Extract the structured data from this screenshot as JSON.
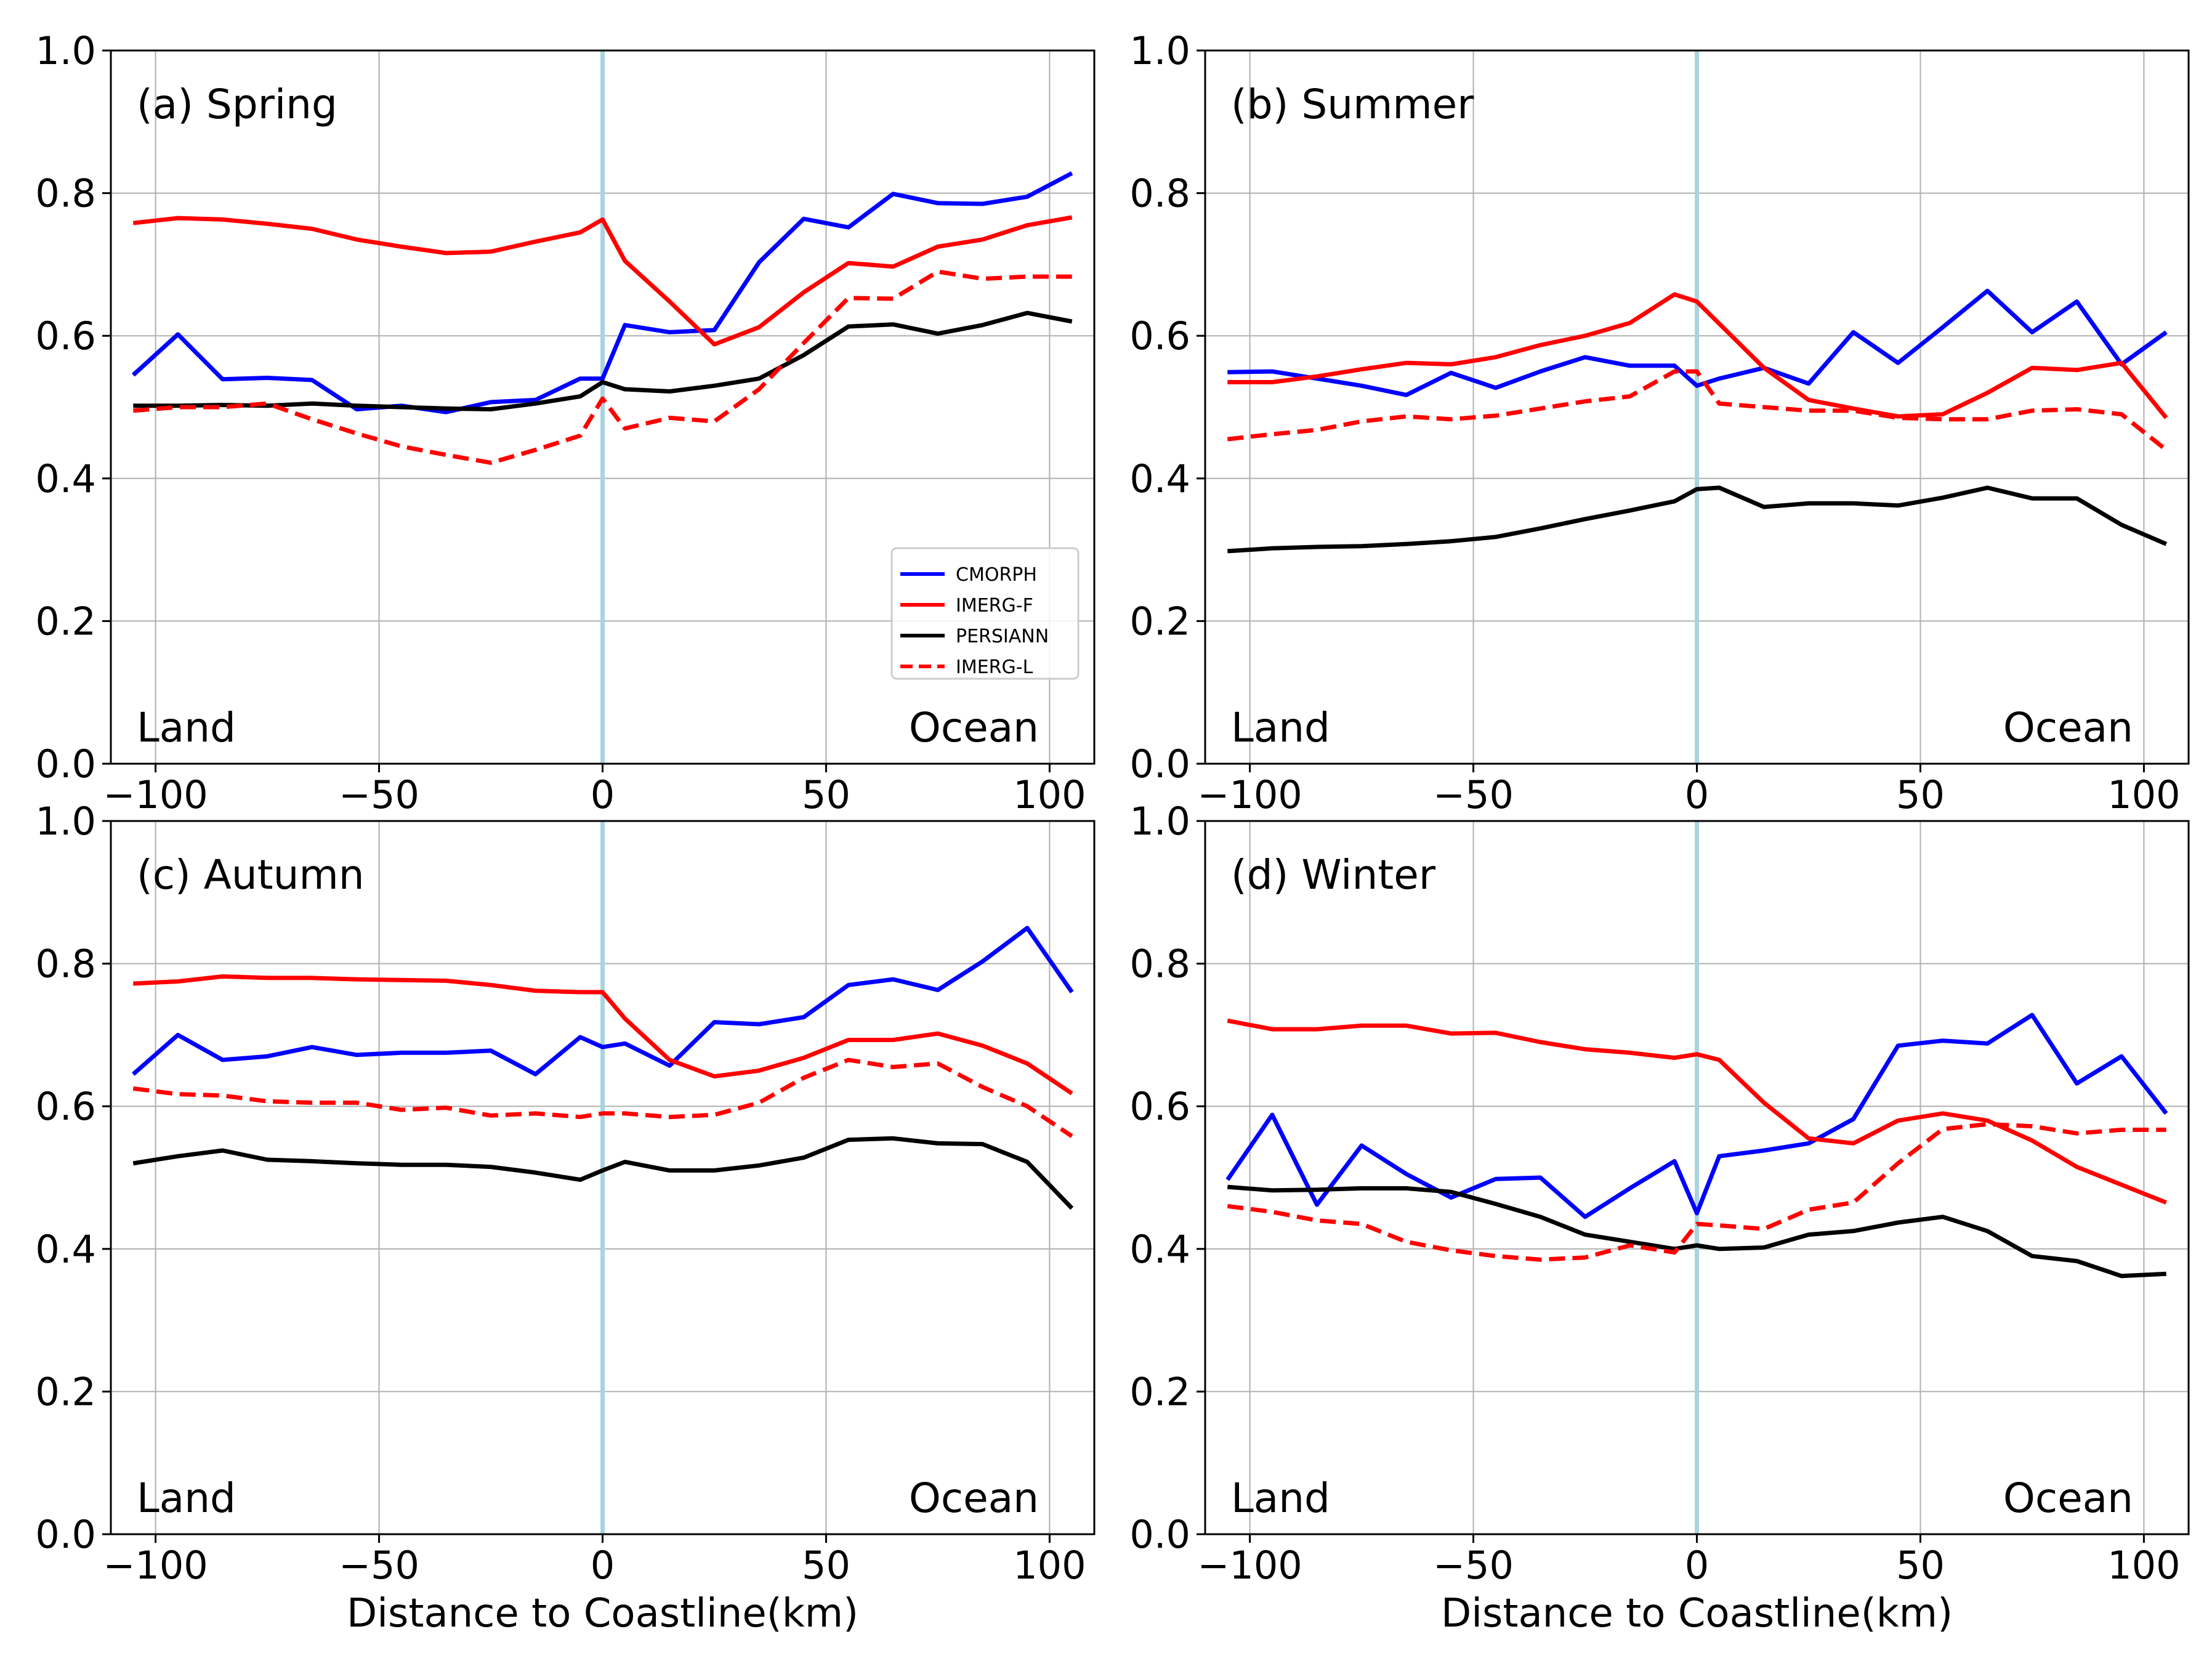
{
  "chart_data": [
    {
      "type": "line",
      "panel": "a",
      "title": "(a) Spring",
      "xlabel": "",
      "ylabel": "",
      "xlim": [
        -110,
        110
      ],
      "ylim": [
        0.0,
        1.0
      ],
      "xticks": [
        -100,
        -50,
        0,
        50,
        100
      ],
      "xtick_labels": [
        "−100",
        "−50",
        "0",
        "50",
        "100"
      ],
      "yticks": [
        0.0,
        0.2,
        0.4,
        0.6,
        0.8,
        1.0
      ],
      "ytick_labels": [
        "0.0",
        "0.2",
        "0.4",
        "0.6",
        "0.8",
        "1.0"
      ],
      "grid": true,
      "land_label": "Land",
      "ocean_label": "Ocean",
      "coastline_x": 0,
      "x": [
        -105,
        -95,
        -85,
        -75,
        -65,
        -55,
        -45,
        -35,
        -25,
        -15,
        -5,
        0,
        5,
        15,
        25,
        35,
        45,
        55,
        65,
        75,
        85,
        95,
        105
      ],
      "series": [
        {
          "name": "CMORPH",
          "color": "#0000ff",
          "dash": false,
          "values": [
            0.545,
            0.602,
            0.539,
            0.541,
            0.538,
            0.497,
            0.502,
            0.493,
            0.507,
            0.51,
            0.54,
            0.54,
            0.615,
            0.605,
            0.608,
            0.703,
            0.764,
            0.752,
            0.799,
            0.786,
            0.785,
            0.795,
            0.828
          ]
        },
        {
          "name": "IMERG-F",
          "color": "#ff0000",
          "dash": false,
          "values": [
            0.758,
            0.765,
            0.763,
            0.757,
            0.75,
            0.735,
            0.725,
            0.716,
            0.718,
            0.732,
            0.745,
            0.763,
            0.705,
            0.648,
            0.588,
            0.612,
            0.661,
            0.702,
            0.697,
            0.725,
            0.735,
            0.755,
            0.766
          ]
        },
        {
          "name": "PERSIANN",
          "color": "#000000",
          "dash": false,
          "values": [
            0.502,
            0.502,
            0.503,
            0.502,
            0.505,
            0.502,
            0.5,
            0.498,
            0.497,
            0.505,
            0.515,
            0.535,
            0.525,
            0.522,
            0.53,
            0.54,
            0.573,
            0.613,
            0.616,
            0.603,
            0.615,
            0.632,
            0.62
          ]
        },
        {
          "name": "IMERG-L",
          "color": "#ff0000",
          "dash": true,
          "values": [
            0.495,
            0.5,
            0.5,
            0.505,
            0.483,
            0.463,
            0.445,
            0.433,
            0.422,
            0.44,
            0.46,
            0.512,
            0.47,
            0.485,
            0.48,
            0.525,
            0.59,
            0.653,
            0.652,
            0.69,
            0.68,
            0.683,
            0.683
          ]
        }
      ],
      "legend": {
        "location": "lower-right",
        "entries": [
          "CMORPH",
          "IMERG-F",
          "PERSIANN",
          "IMERG-L"
        ]
      }
    },
    {
      "type": "line",
      "panel": "b",
      "title": "(b) Summer",
      "xlabel": "",
      "ylabel": "",
      "xlim": [
        -110,
        110
      ],
      "ylim": [
        0.0,
        1.0
      ],
      "xticks": [
        -100,
        -50,
        0,
        50,
        100
      ],
      "xtick_labels": [
        "−100",
        "−50",
        "0",
        "50",
        "100"
      ],
      "yticks": [
        0.0,
        0.2,
        0.4,
        0.6,
        0.8,
        1.0
      ],
      "ytick_labels": [
        "0.0",
        "0.2",
        "0.4",
        "0.6",
        "0.8",
        "1.0"
      ],
      "grid": true,
      "land_label": "Land",
      "ocean_label": "Ocean",
      "coastline_x": 0,
      "x": [
        -105,
        -95,
        -85,
        -75,
        -65,
        -55,
        -45,
        -35,
        -25,
        -15,
        -5,
        0,
        5,
        15,
        25,
        35,
        45,
        55,
        65,
        75,
        85,
        95,
        105
      ],
      "series": [
        {
          "name": "CMORPH",
          "color": "#0000ff",
          "dash": false,
          "values": [
            0.549,
            0.55,
            0.54,
            0.53,
            0.517,
            0.548,
            0.527,
            0.55,
            0.57,
            0.558,
            0.558,
            0.53,
            0.54,
            0.555,
            0.533,
            0.605,
            0.562,
            0.612,
            0.663,
            0.605,
            0.648,
            0.56,
            0.605
          ]
        },
        {
          "name": "IMERG-F",
          "color": "#ff0000",
          "dash": false,
          "values": [
            0.535,
            0.535,
            0.543,
            0.553,
            0.562,
            0.56,
            0.57,
            0.587,
            0.6,
            0.618,
            0.658,
            0.648,
            0.617,
            0.555,
            0.51,
            0.498,
            0.487,
            0.49,
            0.52,
            0.555,
            0.552,
            0.562,
            0.485
          ]
        },
        {
          "name": "PERSIANN",
          "color": "#000000",
          "dash": false,
          "values": [
            0.298,
            0.302,
            0.304,
            0.305,
            0.308,
            0.312,
            0.318,
            0.33,
            0.343,
            0.355,
            0.368,
            0.385,
            0.387,
            0.36,
            0.365,
            0.365,
            0.362,
            0.373,
            0.387,
            0.372,
            0.372,
            0.335,
            0.308
          ]
        },
        {
          "name": "IMERG-L",
          "color": "#ff0000",
          "dash": true,
          "values": [
            0.455,
            0.462,
            0.468,
            0.48,
            0.487,
            0.483,
            0.488,
            0.498,
            0.508,
            0.515,
            0.55,
            0.55,
            0.505,
            0.5,
            0.495,
            0.495,
            0.485,
            0.483,
            0.483,
            0.495,
            0.497,
            0.49,
            0.44
          ]
        }
      ]
    },
    {
      "type": "line",
      "panel": "c",
      "title": "(c) Autumn",
      "xlabel": "Distance to Coastline(km)",
      "ylabel": "",
      "xlim": [
        -110,
        110
      ],
      "ylim": [
        0.0,
        1.0
      ],
      "xticks": [
        -100,
        -50,
        0,
        50,
        100
      ],
      "xtick_labels": [
        "−100",
        "−50",
        "0",
        "50",
        "100"
      ],
      "yticks": [
        0.0,
        0.2,
        0.4,
        0.6,
        0.8,
        1.0
      ],
      "ytick_labels": [
        "0.0",
        "0.2",
        "0.4",
        "0.6",
        "0.8",
        "1.0"
      ],
      "grid": true,
      "land_label": "Land",
      "ocean_label": "Ocean",
      "coastline_x": 0,
      "x": [
        -105,
        -95,
        -85,
        -75,
        -65,
        -55,
        -45,
        -35,
        -25,
        -15,
        -5,
        0,
        5,
        15,
        25,
        35,
        45,
        55,
        65,
        75,
        85,
        95,
        105
      ],
      "series": [
        {
          "name": "CMORPH",
          "color": "#0000ff",
          "dash": false,
          "values": [
            0.645,
            0.7,
            0.665,
            0.67,
            0.683,
            0.672,
            0.675,
            0.675,
            0.678,
            0.645,
            0.697,
            0.683,
            0.688,
            0.657,
            0.718,
            0.715,
            0.725,
            0.77,
            0.778,
            0.763,
            0.803,
            0.85,
            0.76
          ]
        },
        {
          "name": "IMERG-F",
          "color": "#ff0000",
          "dash": false,
          "values": [
            0.772,
            0.775,
            0.782,
            0.78,
            0.78,
            0.778,
            0.777,
            0.776,
            0.77,
            0.762,
            0.76,
            0.76,
            0.723,
            0.665,
            0.642,
            0.65,
            0.668,
            0.693,
            0.693,
            0.702,
            0.685,
            0.66,
            0.618
          ]
        },
        {
          "name": "PERSIANN",
          "color": "#000000",
          "dash": false,
          "values": [
            0.52,
            0.53,
            0.538,
            0.525,
            0.523,
            0.52,
            0.518,
            0.518,
            0.515,
            0.507,
            0.497,
            0.51,
            0.522,
            0.51,
            0.51,
            0.517,
            0.528,
            0.553,
            0.555,
            0.548,
            0.547,
            0.522,
            0.457
          ]
        },
        {
          "name": "IMERG-L",
          "color": "#ff0000",
          "dash": true,
          "values": [
            0.625,
            0.617,
            0.615,
            0.607,
            0.605,
            0.605,
            0.595,
            0.598,
            0.587,
            0.59,
            0.585,
            0.59,
            0.59,
            0.585,
            0.588,
            0.605,
            0.64,
            0.665,
            0.655,
            0.66,
            0.627,
            0.6,
            0.558
          ]
        }
      ]
    },
    {
      "type": "line",
      "panel": "d",
      "title": "(d) Winter",
      "xlabel": "Distance to Coastline(km)",
      "ylabel": "",
      "xlim": [
        -110,
        110
      ],
      "ylim": [
        0.0,
        1.0
      ],
      "xticks": [
        -100,
        -50,
        0,
        50,
        100
      ],
      "xtick_labels": [
        "−100",
        "−50",
        "0",
        "50",
        "100"
      ],
      "yticks": [
        0.0,
        0.2,
        0.4,
        0.6,
        0.8,
        1.0
      ],
      "ytick_labels": [
        "0.0",
        "0.2",
        "0.4",
        "0.6",
        "0.8",
        "1.0"
      ],
      "grid": true,
      "land_label": "Land",
      "ocean_label": "Ocean",
      "coastline_x": 0,
      "x": [
        -105,
        -95,
        -85,
        -75,
        -65,
        -55,
        -45,
        -35,
        -25,
        -15,
        -5,
        0,
        5,
        15,
        25,
        35,
        45,
        55,
        65,
        75,
        85,
        95,
        105
      ],
      "series": [
        {
          "name": "CMORPH",
          "color": "#0000ff",
          "dash": false,
          "values": [
            0.497,
            0.588,
            0.462,
            0.545,
            0.505,
            0.472,
            0.498,
            0.5,
            0.445,
            0.485,
            0.523,
            0.45,
            0.53,
            0.538,
            0.548,
            0.582,
            0.685,
            0.692,
            0.688,
            0.728,
            0.632,
            0.67,
            0.59
          ]
        },
        {
          "name": "IMERG-F",
          "color": "#ff0000",
          "dash": false,
          "values": [
            0.72,
            0.708,
            0.708,
            0.713,
            0.713,
            0.702,
            0.703,
            0.69,
            0.68,
            0.675,
            0.668,
            0.673,
            0.665,
            0.605,
            0.555,
            0.548,
            0.58,
            0.59,
            0.58,
            0.552,
            0.515,
            0.49,
            0.465
          ]
        },
        {
          "name": "PERSIANN",
          "color": "#000000",
          "dash": false,
          "values": [
            0.487,
            0.482,
            0.483,
            0.485,
            0.485,
            0.48,
            0.463,
            0.445,
            0.42,
            0.41,
            0.4,
            0.405,
            0.4,
            0.402,
            0.42,
            0.425,
            0.437,
            0.445,
            0.425,
            0.39,
            0.383,
            0.362,
            0.365
          ]
        },
        {
          "name": "IMERG-L",
          "color": "#ff0000",
          "dash": true,
          "values": [
            0.46,
            0.452,
            0.44,
            0.435,
            0.41,
            0.398,
            0.39,
            0.385,
            0.388,
            0.405,
            0.395,
            0.435,
            0.433,
            0.428,
            0.455,
            0.465,
            0.52,
            0.568,
            0.575,
            0.572,
            0.562,
            0.567,
            0.567
          ]
        }
      ]
    }
  ]
}
